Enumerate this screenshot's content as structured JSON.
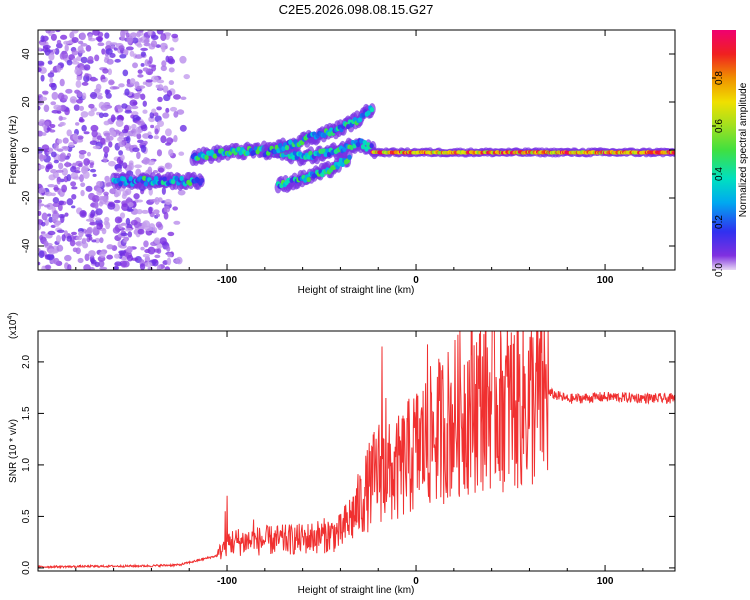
{
  "title": "C2E5.2026.098.08.15.G27",
  "chart_data": [
    {
      "type": "heatmap",
      "xlabel": "Height of straight line (km)",
      "ylabel": "Frequency (Hz)",
      "xlim": [
        -200,
        137
      ],
      "ylim": [
        -50,
        50
      ],
      "xticks": [
        -100,
        0,
        100
      ],
      "yticks": [
        -40,
        -20,
        0,
        20,
        40
      ],
      "xtick_labels": [
        "-100",
        "0",
        "100"
      ],
      "ytick_labels": [
        "-40",
        "-20",
        "0",
        "20",
        "40"
      ],
      "tracks": [
        {
          "name": "low-altitude track",
          "points": [
            [
              -160,
              -13
            ],
            [
              -140,
              -13
            ],
            [
              -120,
              -13
            ],
            [
              -113,
              -13
            ]
          ],
          "intensity": 0.45
        },
        {
          "name": "main track",
          "points": [
            [
              -118,
              -3
            ],
            [
              -100,
              -1
            ],
            [
              -80,
              0
            ],
            [
              -60,
              -3
            ],
            [
              -45,
              -1
            ],
            [
              -30,
              3
            ],
            [
              -22,
              0
            ]
          ],
          "intensity": 0.4
        },
        {
          "name": "upper branch",
          "points": [
            [
              -80,
              -1
            ],
            [
              -60,
              4
            ],
            [
              -40,
              9
            ],
            [
              -28,
              14
            ],
            [
              -23,
              18
            ]
          ],
          "intensity": 0.3
        },
        {
          "name": "lower branch",
          "points": [
            [
              -73,
              -15
            ],
            [
              -60,
              -12
            ],
            [
              -45,
              -8
            ],
            [
              -35,
              -3
            ]
          ],
          "intensity": 0.4
        },
        {
          "name": "steady carrier",
          "points": [
            [
              -23,
              -1
            ],
            [
              0,
              -1
            ],
            [
              50,
              -1
            ],
            [
              137,
              -1
            ]
          ],
          "intensity": 0.85
        }
      ],
      "noise_region_km": [
        -200,
        -120
      ],
      "colorbar": {
        "label": "Normalized spectral amplitude",
        "range": [
          0,
          1
        ],
        "ticks": [
          0.0,
          0.2,
          0.4,
          0.6,
          0.8
        ],
        "tick_labels": [
          "0.0",
          "0.2",
          "0.4",
          "0.6",
          "0.8"
        ]
      }
    },
    {
      "type": "line",
      "xlabel": "Height of straight line (km)",
      "ylabel": "SNR (10 * v/v)",
      "scale_note": "(x10",
      "scale_exp": "4",
      "scale_close": ")",
      "xlim": [
        -200,
        137
      ],
      "ylim": [
        -0.03,
        2.3
      ],
      "xticks": [
        -100,
        0,
        100
      ],
      "yticks": [
        0.0,
        0.5,
        1.0,
        1.5,
        2.0
      ],
      "xtick_labels": [
        "-100",
        "0",
        "100"
      ],
      "ytick_labels": [
        "0.0",
        "0.5",
        "1.0",
        "1.5",
        "2.0"
      ],
      "series": [
        {
          "name": "SNR",
          "color": "#f03030",
          "envelope": {
            "x": [
              -200,
              -140,
              -125,
              -105,
              -100,
              -60,
              -40,
              -32,
              -26,
              -20,
              -12,
              0,
              10,
              20,
              30,
              40,
              50,
              60,
              70,
              80,
              100,
              137
            ],
            "y": [
              0.01,
              0.02,
              0.03,
              0.12,
              0.25,
              0.28,
              0.34,
              0.55,
              0.75,
              0.95,
              0.9,
              1.15,
              1.3,
              1.45,
              1.6,
              1.65,
              1.6,
              1.62,
              1.7,
              1.64,
              1.66,
              1.64
            ]
          },
          "spikes": [
            {
              "x": -18,
              "y": 2.15
            },
            {
              "x": -16,
              "y": 1.65
            },
            {
              "x": 6,
              "y": 2.17
            },
            {
              "x": 45,
              "y": 2.22
            },
            {
              "x": 52,
              "y": 2.26
            },
            {
              "x": -100,
              "y": 0.7
            },
            {
              "x": -101,
              "y": 0.55
            },
            {
              "x": -86,
              "y": 0.47
            }
          ]
        }
      ]
    }
  ]
}
